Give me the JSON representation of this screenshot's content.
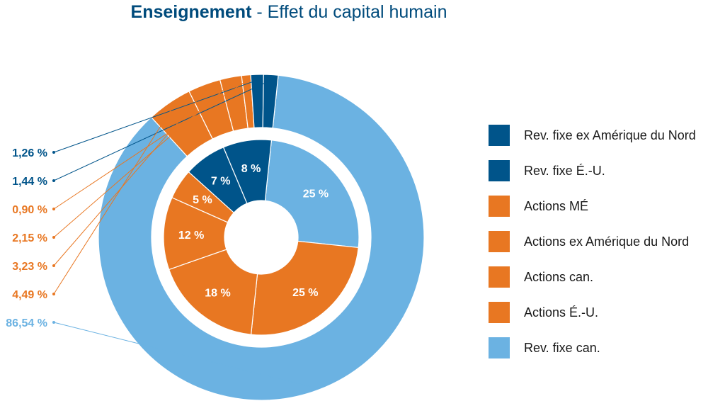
{
  "title": {
    "main": "Enseignement",
    "sep": " - ",
    "sub": "Effet du capital humain"
  },
  "colors": {
    "dark_blue": "#00548a",
    "orange": "#e87722",
    "light_blue": "#6bb2e2",
    "title_blue": "#004b7c"
  },
  "chart_data": {
    "type": "pie",
    "title": "Enseignement - Effet du capital humain",
    "categories": [
      "Rev. fixe ex Amérique du Nord",
      "Rev. fixe É.-U.",
      "Actions MÉ",
      "Actions ex Amérique du Nord",
      "Actions can.",
      "Actions É.-U.",
      "Rev. fixe can."
    ],
    "series": [
      {
        "ring": "outer",
        "slices": [
          {
            "category": "Rev. fixe can.",
            "value": 86.54,
            "label": "86,54 %"
          },
          {
            "category": "Actions É.-U.",
            "value": 4.49,
            "label": "4,49 %"
          },
          {
            "category": "Actions can.",
            "value": 3.23,
            "label": "3,23 %"
          },
          {
            "category": "Actions ex Amérique du Nord",
            "value": 2.15,
            "label": "2,15 %"
          },
          {
            "category": "Actions MÉ",
            "value": 0.9,
            "label": "0,90 %"
          },
          {
            "category": "Rev. fixe É.-U.",
            "value": 1.26,
            "label": "1,26 %"
          },
          {
            "category": "Rev. fixe ex Amérique du Nord",
            "value": 1.44,
            "label": "1,44 %"
          }
        ]
      },
      {
        "ring": "inner",
        "slices": [
          {
            "category": "Rev. fixe can.",
            "value": 25,
            "label": "25 %"
          },
          {
            "category": "Actions É.-U.",
            "value": 25,
            "label": "25 %"
          },
          {
            "category": "Actions can.",
            "value": 18,
            "label": "18 %"
          },
          {
            "category": "Actions ex Amérique du Nord",
            "value": 12,
            "label": "12 %"
          },
          {
            "category": "Actions MÉ",
            "value": 5,
            "label": "5 %"
          },
          {
            "category": "Rev. fixe É.-U.",
            "value": 7,
            "label": "7 %"
          },
          {
            "category": "Rev. fixe ex Amérique du Nord",
            "value": 8,
            "label": "8 %"
          }
        ]
      }
    ],
    "legend": {
      "placement": "right",
      "items": [
        {
          "label": "Rev. fixe ex Amérique du Nord",
          "color": "#00548a"
        },
        {
          "label": "Rev. fixe É.-U.",
          "color": "#00548a"
        },
        {
          "label": "Actions MÉ",
          "color": "#e87722"
        },
        {
          "label": "Actions ex Amérique du Nord",
          "color": "#e87722"
        },
        {
          "label": "Actions can.",
          "color": "#e87722"
        },
        {
          "label": "Actions É.-U.",
          "color": "#e87722"
        },
        {
          "label": "Rev. fixe can.",
          "color": "#6bb2e2"
        }
      ]
    },
    "category_colors": {
      "Rev. fixe ex Amérique du Nord": "#00548a",
      "Rev. fixe É.-U.": "#00548a",
      "Actions MÉ": "#e87722",
      "Actions ex Amérique du Nord": "#e87722",
      "Actions can.": "#e87722",
      "Actions É.-U.": "#e87722",
      "Rev. fixe can.": "#6bb2e2"
    }
  }
}
